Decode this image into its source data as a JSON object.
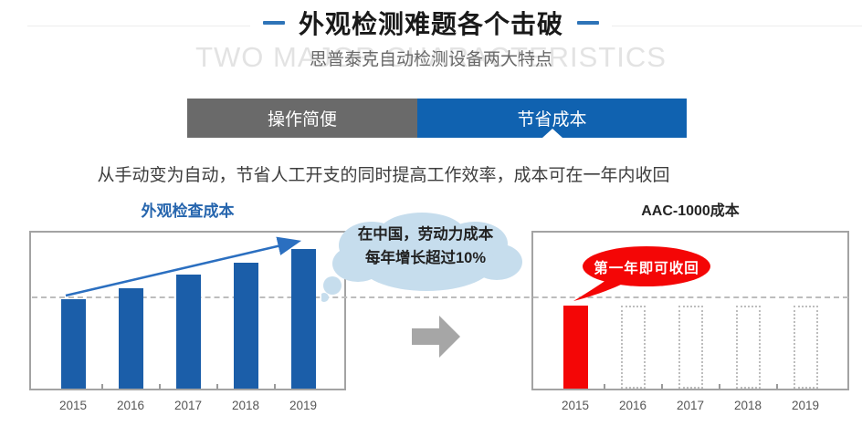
{
  "header": {
    "title": "外观检测难题各个击破",
    "subtitle": "思普泰克自动检测设备两大特点",
    "watermark": "TWO MAJOR CHARACTERISTICS"
  },
  "tabs": [
    {
      "label": "操作简便",
      "active": false
    },
    {
      "label": "节省成本",
      "active": true
    }
  ],
  "description": "从手动变为自动，节省人工开支的同时提高工作效率，成本可在一年内收回",
  "callouts": {
    "cloud": {
      "line1": "在中国，劳动力成本",
      "line2": "每年增长超过10%"
    },
    "bubble": {
      "text": "第一年即可收回"
    }
  },
  "colors": {
    "accent_blue": "#2e74b8",
    "tab_gray": "#6a6a6a",
    "tab_blue": "#1062b0",
    "bar_blue": "#1b5ea9",
    "bar_red": "#f40606",
    "cloud_blue": "#c6dded",
    "arrow_gray": "#a6a6a6",
    "frame_gray": "#a3a3a3",
    "watermark_gray": "#e3e3e3"
  },
  "chart_data": [
    {
      "type": "bar",
      "title": "外观检查成本",
      "categories": [
        "2015",
        "2016",
        "2017",
        "2018",
        "2019"
      ],
      "bars": [
        {
          "year": "2015",
          "value": 100,
          "style": "solid"
        },
        {
          "year": "2016",
          "value": 113,
          "style": "solid"
        },
        {
          "year": "2017",
          "value": 128,
          "style": "solid"
        },
        {
          "year": "2018",
          "value": 141,
          "style": "solid"
        },
        {
          "year": "2019",
          "value": 157,
          "style": "solid"
        }
      ],
      "bar_color": "#1b5ea9",
      "xlabel": "",
      "ylabel": "",
      "ylim": [
        0,
        175
      ],
      "grid": "single dashed horizontal baseline at 2015 bar level",
      "legend": "none",
      "value_note": "no y-axis scale shown; values estimated relative to 2015 = 100",
      "annotations": [
        "rising blue trend arrow from 2015 bar top to 2019 bar top"
      ]
    },
    {
      "type": "bar",
      "title": "AAC-1000成本",
      "categories": [
        "2015",
        "2016",
        "2017",
        "2018",
        "2019"
      ],
      "bars": [
        {
          "year": "2015",
          "value": 93,
          "style": "solid"
        },
        {
          "year": "2016",
          "value": 93,
          "style": "ghost"
        },
        {
          "year": "2017",
          "value": 93,
          "style": "ghost"
        },
        {
          "year": "2018",
          "value": 93,
          "style": "ghost"
        },
        {
          "year": "2019",
          "value": 93,
          "style": "ghost"
        }
      ],
      "bar_color": "#f40606",
      "xlabel": "",
      "ylabel": "",
      "ylim": [
        0,
        175
      ],
      "grid": "single dashed horizontal baseline",
      "legend": "none",
      "value_note": "only 2015 bar is filled (red = cost incurred); 2016-2019 are empty dotted outlines",
      "annotations": [
        "red speech bubble pointing at 2015 bar: 第一年即可收回"
      ]
    }
  ]
}
